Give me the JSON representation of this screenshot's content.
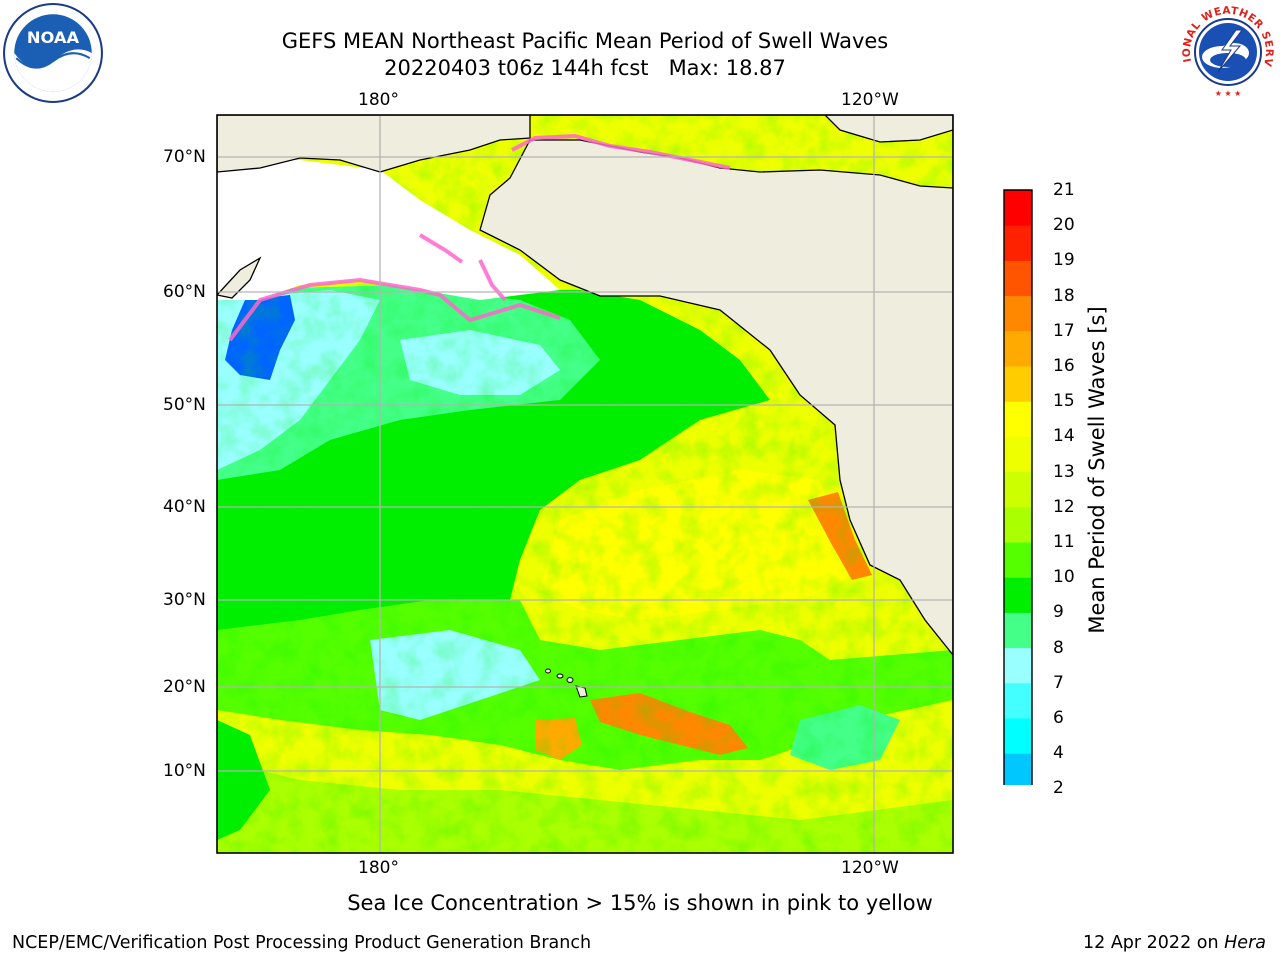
{
  "header": {
    "title_line1": "GEFS MEAN Northeast Pacific Mean Period of Swell Waves",
    "title_line2": "20220403 t06z 144h fcst   Max: 18.87"
  },
  "logos": {
    "left": {
      "icon": "noaa-logo",
      "text": "NOAA"
    },
    "right": {
      "icon": "nws-logo",
      "text": "NATIONAL WEATHER SERVICE"
    }
  },
  "map": {
    "projection": "plate-carree",
    "top_lon_labels": [
      "180°",
      "120°W"
    ],
    "bottom_lon_labels": [
      "180°",
      "120°W"
    ],
    "lat_labels": [
      "70°N",
      "60°N",
      "50°N",
      "40°N",
      "30°N",
      "20°N",
      "10°N"
    ],
    "colors": {
      "land": "#efedde",
      "ice_free_unmodelled": "#ffffff",
      "grid": "#b4b4b4",
      "coast": "#000000",
      "sea_ice": "#ff66cc"
    }
  },
  "colorbar": {
    "label": "Mean Period of Swell Waves [s]",
    "ticks": [
      "21",
      "20",
      "19",
      "18",
      "17",
      "16",
      "15",
      "14",
      "13",
      "12",
      "11",
      "10",
      "9",
      "8",
      "7",
      "6",
      "4",
      "2"
    ],
    "colors_bottom_to_top": [
      "#0064ff",
      "#00c8ff",
      "#00ffff",
      "#44ffff",
      "#99ffff",
      "#44ff88",
      "#00ee00",
      "#55ff00",
      "#aaff00",
      "#ccff00",
      "#eeff00",
      "#ffff00",
      "#ffcc00",
      "#ffaa00",
      "#ff8800",
      "#ff5500",
      "#ff2200",
      "#ff0000"
    ],
    "under_color": "#0000ff",
    "extend": "min"
  },
  "footer": {
    "note": "Sea Ice Concentration > 15% is shown in pink to yellow",
    "credit": "NCEP/EMC/Verification Post Processing Product Generation Branch",
    "date": "12 Apr 2022 on ",
    "machine": "Hera"
  }
}
